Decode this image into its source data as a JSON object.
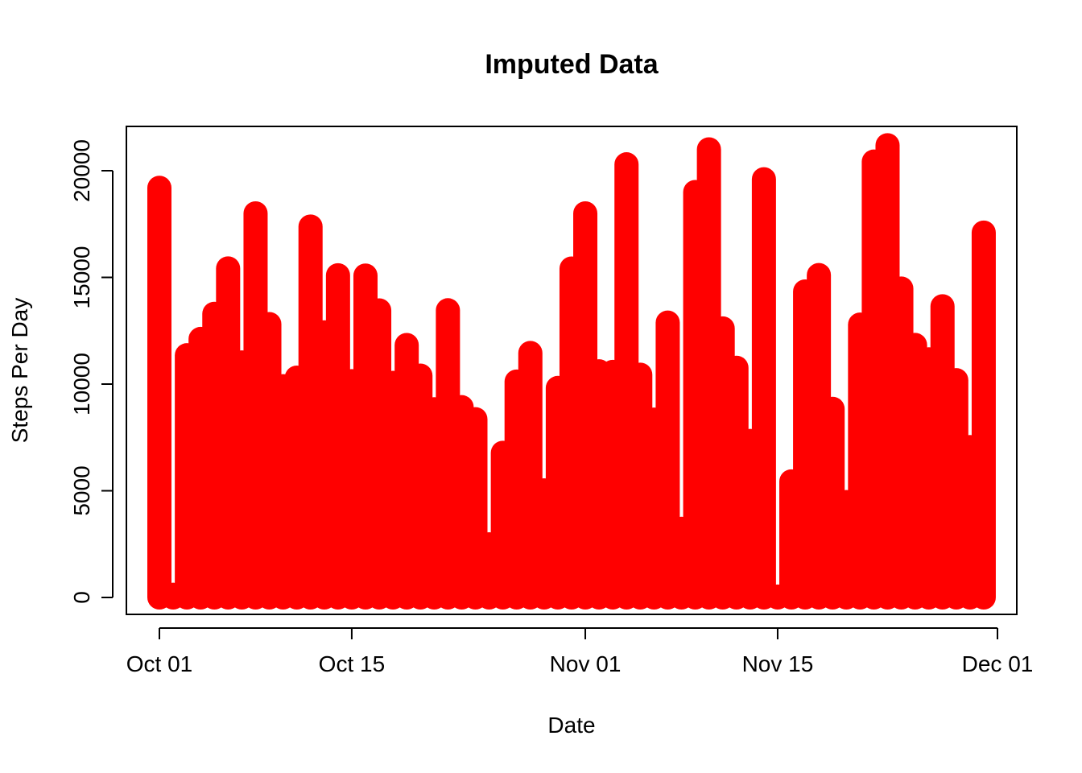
{
  "chart_data": {
    "type": "bar",
    "title": "Imputed Data",
    "xlabel": "Date",
    "ylabel": "Steps Per Day",
    "x": [
      "2012-10-01",
      "2012-10-02",
      "2012-10-03",
      "2012-10-04",
      "2012-10-05",
      "2012-10-06",
      "2012-10-07",
      "2012-10-08",
      "2012-10-09",
      "2012-10-10",
      "2012-10-11",
      "2012-10-12",
      "2012-10-13",
      "2012-10-14",
      "2012-10-15",
      "2012-10-16",
      "2012-10-17",
      "2012-10-18",
      "2012-10-19",
      "2012-10-20",
      "2012-10-21",
      "2012-10-22",
      "2012-10-23",
      "2012-10-24",
      "2012-10-25",
      "2012-10-26",
      "2012-10-27",
      "2012-10-28",
      "2012-10-29",
      "2012-10-30",
      "2012-10-31",
      "2012-11-01",
      "2012-11-02",
      "2012-11-03",
      "2012-11-04",
      "2012-11-05",
      "2012-11-06",
      "2012-11-07",
      "2012-11-08",
      "2012-11-09",
      "2012-11-10",
      "2012-11-11",
      "2012-11-12",
      "2012-11-13",
      "2012-11-14",
      "2012-11-15",
      "2012-11-16",
      "2012-11-17",
      "2012-11-18",
      "2012-11-19",
      "2012-11-20",
      "2012-11-21",
      "2012-11-22",
      "2012-11-23",
      "2012-11-24",
      "2012-11-25",
      "2012-11-26",
      "2012-11-27",
      "2012-11-28",
      "2012-11-29",
      "2012-11-30"
    ],
    "values": [
      19200,
      126,
      11352,
      12116,
      13294,
      15420,
      11015,
      18000,
      12811,
      9900,
      10304,
      17382,
      12426,
      15098,
      10139,
      15084,
      13452,
      10056,
      11829,
      10395,
      8821,
      13460,
      8918,
      8355,
      2492,
      6778,
      10119,
      11458,
      5018,
      9819,
      15414,
      18000,
      10600,
      10571,
      20300,
      10439,
      8334,
      12883,
      3219,
      19000,
      21000,
      12608,
      10765,
      7336,
      19600,
      41,
      5441,
      14339,
      15110,
      8841,
      4472,
      12787,
      20427,
      21194,
      14478,
      11834,
      11162,
      13646,
      10183,
      7047,
      17100
    ],
    "ylim": [
      -700,
      22100
    ],
    "y_ticks": [
      0,
      5000,
      10000,
      15000,
      20000
    ],
    "y_tick_labels": [
      "0",
      "5000",
      "10000",
      "15000",
      "20000"
    ],
    "x_ticks": [
      "2012-10-01",
      "2012-10-15",
      "2012-11-01",
      "2012-11-15",
      "2012-12-01"
    ],
    "x_tick_labels": [
      "Oct 01",
      "Oct 15",
      "Nov 01",
      "Nov 15",
      "Dec 01"
    ],
    "color": "#FF0000",
    "grid": false,
    "legend": "none"
  }
}
